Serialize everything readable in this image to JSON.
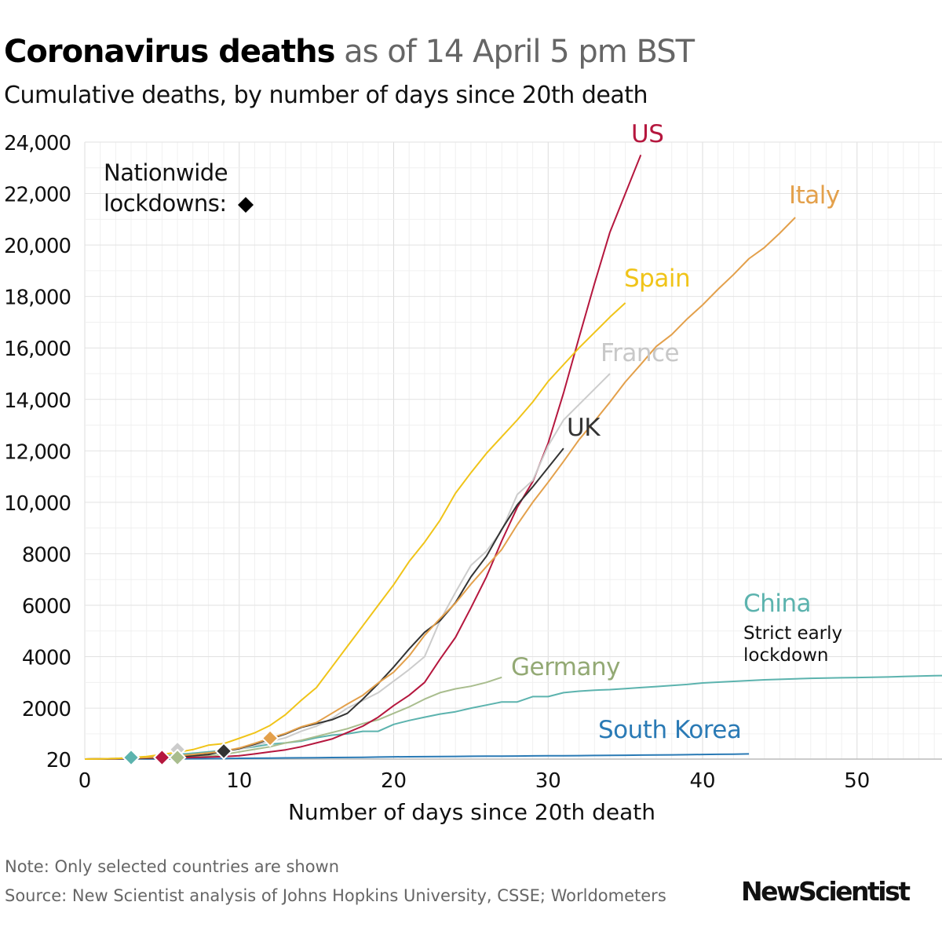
{
  "header": {
    "title_bold": "Coronavirus deaths",
    "title_light": "as of 14 April 5 pm BST",
    "subtitle": "Cumulative deaths, by number of days since 20th death"
  },
  "legend": {
    "line1": "Nationwide",
    "line2": "lockdowns:",
    "marker": "diamond",
    "marker_color": "#000000"
  },
  "annotations": {
    "china_note_line1": "Strict early",
    "china_note_line2": "lockdown"
  },
  "footer": {
    "note": "Note: Only selected countries are shown",
    "source": "Source: New Scientist analysis of Johns Hopkins University, CSSE; Worldometers",
    "logo": "NewScientist"
  },
  "chart_data": {
    "type": "line",
    "xlabel": "Number of days since 20th death",
    "ylabel": "",
    "xlim": [
      0,
      55.5
    ],
    "ylim": [
      20,
      24000
    ],
    "x_ticks": [
      "0",
      "10",
      "20",
      "30",
      "40",
      "50"
    ],
    "y_ticks": [
      "20",
      "2000",
      "4000",
      "6000",
      "8000",
      "10,000",
      "12,000",
      "14,000",
      "16,000",
      "18,000",
      "20,000",
      "22,000",
      "24,000"
    ],
    "grid": true,
    "series": [
      {
        "name": "China",
        "color": "#5cb3ae",
        "label_color": "#5cb3ae",
        "lockdown_day": 3,
        "values": [
          20,
          30,
          40,
          70,
          100,
          140,
          200,
          250,
          300,
          360,
          420,
          500,
          600,
          650,
          720,
          850,
          950,
          1000,
          1100,
          1100,
          1370,
          1520,
          1650,
          1770,
          1860,
          2000,
          2120,
          2240,
          2240,
          2450,
          2450,
          2600,
          2660,
          2700,
          2720,
          2760,
          2800,
          2840,
          2880,
          2920,
          2980,
          3010,
          3040,
          3070,
          3100,
          3120,
          3140,
          3160,
          3170,
          3180,
          3190,
          3200,
          3210,
          3230,
          3245,
          3260,
          3270,
          3280
        ]
      },
      {
        "name": "South Korea",
        "color": "#2a7ab5",
        "label_color": "#2a7ab5",
        "lockdown_day": null,
        "values": [
          20,
          22,
          24,
          26,
          28,
          30,
          32,
          35,
          38,
          42,
          50,
          55,
          60,
          65,
          70,
          75,
          80,
          85,
          90,
          100,
          110,
          112,
          115,
          120,
          125,
          130,
          132,
          135,
          140,
          145,
          150,
          152,
          155,
          160,
          165,
          170,
          175,
          180,
          185,
          190,
          200,
          205,
          210,
          220
        ]
      },
      {
        "name": "Germany",
        "color": "#a9bd8e",
        "label_color": "#93a974",
        "lockdown_day": 6,
        "values": [
          20,
          25,
          30,
          40,
          50,
          60,
          70,
          100,
          150,
          200,
          300,
          400,
          500,
          650,
          750,
          900,
          1050,
          1200,
          1400,
          1550,
          1800,
          2050,
          2350,
          2600,
          2750,
          2850,
          3000,
          3200
        ]
      },
      {
        "name": "US",
        "color": "#b5173e",
        "label_color": "#b5173e",
        "lockdown_day": 5,
        "values": [
          20,
          25,
          30,
          40,
          50,
          60,
          70,
          85,
          100,
          120,
          150,
          220,
          300,
          380,
          500,
          650,
          800,
          1050,
          1300,
          1650,
          2100,
          2500,
          3000,
          3900,
          4750,
          5900,
          7100,
          8500,
          9800,
          10800,
          12300,
          14250,
          16400,
          18500,
          20500,
          22000,
          23500
        ]
      },
      {
        "name": "France",
        "color": "#cccccc",
        "label_color": "#c8c8c8",
        "lockdown_day": 6,
        "values": [
          20,
          30,
          40,
          60,
          80,
          110,
          150,
          190,
          240,
          300,
          400,
          550,
          700,
          850,
          1100,
          1300,
          1600,
          2000,
          2300,
          2600,
          3050,
          3500,
          4000,
          5400,
          6500,
          7550,
          8100,
          8900,
          10300,
          10850,
          12200,
          13200,
          13800,
          14400,
          15000
        ]
      },
      {
        "name": "UK",
        "color": "#333333",
        "label_color": "#333333",
        "lockdown_day": 9,
        "values": [
          20,
          25,
          35,
          50,
          60,
          80,
          110,
          150,
          200,
          330,
          430,
          600,
          800,
          1000,
          1250,
          1400,
          1550,
          1800,
          2350,
          2950,
          3600,
          4300,
          4950,
          5400,
          6100,
          7100,
          7900,
          8950,
          9900,
          10600,
          11350,
          12100
        ]
      },
      {
        "name": "Italy",
        "color": "#e3a04b",
        "label_color": "#e3a04b",
        "lockdown_day": 12,
        "values": [
          20,
          30,
          40,
          60,
          80,
          110,
          150,
          200,
          260,
          330,
          450,
          630,
          830,
          1020,
          1270,
          1440,
          1800,
          2160,
          2500,
          2980,
          3400,
          4030,
          4830,
          5480,
          6080,
          6820,
          7500,
          8170,
          9130,
          10000,
          10780,
          11590,
          12430,
          13150,
          13900,
          14680,
          15360,
          16060,
          16520,
          17130,
          17670,
          18280,
          18850,
          19470,
          19900,
          20460,
          21070
        ]
      },
      {
        "name": "Spain",
        "color": "#f0c419",
        "label_color": "#f0c419",
        "lockdown_day": null,
        "values": [
          20,
          30,
          40,
          80,
          120,
          200,
          290,
          390,
          560,
          620,
          830,
          1040,
          1330,
          1750,
          2300,
          2800,
          3600,
          4400,
          5200,
          6000,
          6800,
          7700,
          8450,
          9300,
          10350,
          11150,
          11900,
          12550,
          13200,
          13900,
          14700,
          15350,
          16000,
          16600,
          17200,
          17750
        ]
      }
    ]
  }
}
